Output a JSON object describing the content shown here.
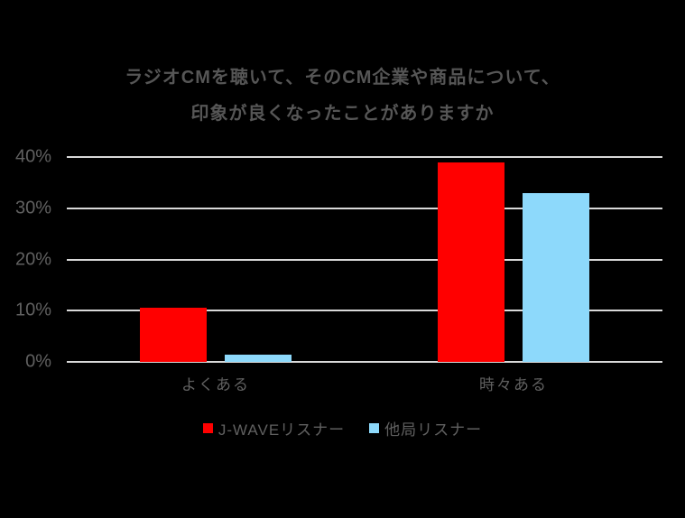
{
  "chart_data": {
    "type": "bar",
    "title_lines": [
      "ラジオCMを聴いて、そのCM企業や商品について、",
      "印象が良くなったことがありますか"
    ],
    "categories": [
      "よくある",
      "時々ある"
    ],
    "series": [
      {
        "name": "J-WAVEリスナー",
        "color": "#ff0000",
        "values": [
          10.5,
          39
        ]
      },
      {
        "name": "他局リスナー",
        "color": "#8dd9fb",
        "values": [
          1.5,
          33
        ]
      }
    ],
    "ylim": [
      0,
      40
    ],
    "yticks": [
      {
        "value": 0,
        "label": "0%"
      },
      {
        "value": 10,
        "label": "10%"
      },
      {
        "value": 20,
        "label": "20%"
      },
      {
        "value": 30,
        "label": "30%"
      },
      {
        "value": 40,
        "label": "40%"
      }
    ],
    "grid": true,
    "legend_position": "bottom",
    "xlabel": "",
    "ylabel": ""
  },
  "colors": {
    "background": "#000000",
    "gridline": "#d9d9d9",
    "title_text": "#565656",
    "axis_text": "#606060",
    "legend_text": "#606060"
  }
}
